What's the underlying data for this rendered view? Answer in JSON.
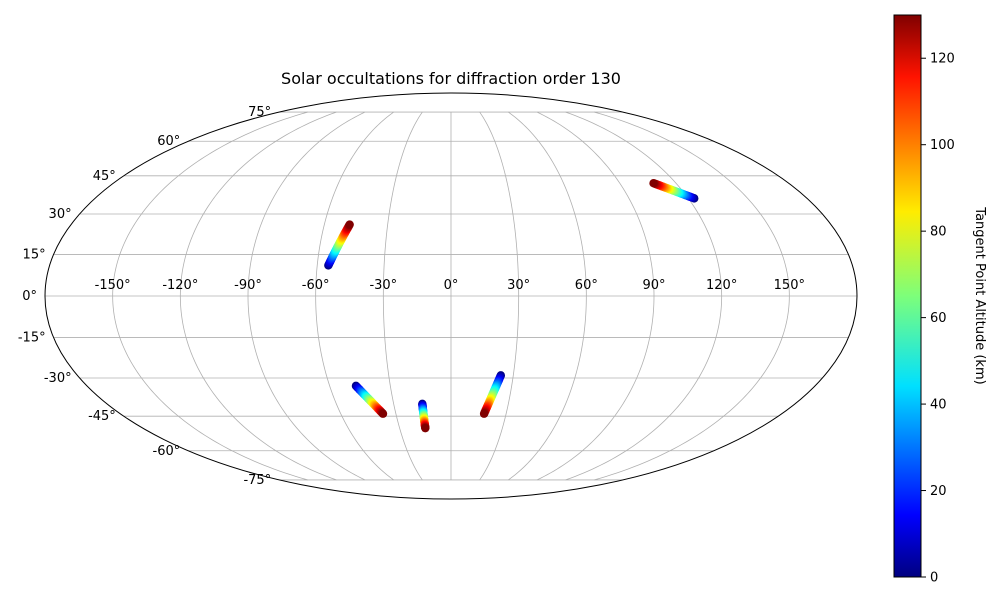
{
  "chart_data": {
    "type": "scatter",
    "projection": "mollweide",
    "title": "Solar occultations for diffraction order 130",
    "grid": true,
    "longitude_ticks": [
      -150,
      -120,
      -90,
      -60,
      -30,
      0,
      30,
      60,
      90,
      120,
      150
    ],
    "longitude_tick_labels": [
      "-150°",
      "-120°",
      "-90°",
      "-60°",
      "-30°",
      "0°",
      "30°",
      "60°",
      "90°",
      "120°",
      "150°"
    ],
    "latitude_ticks": [
      -75,
      -60,
      -45,
      -30,
      -15,
      0,
      15,
      30,
      45,
      60,
      75
    ],
    "latitude_tick_labels": [
      "-75°",
      "-60°",
      "-45°",
      "-30°",
      "-15°",
      "0°",
      "15°",
      "30°",
      "45°",
      "60°",
      "75°"
    ],
    "colorbar": {
      "label": "Tangent Point Altitude (km)",
      "colormap": "jet",
      "range": [
        0,
        130
      ],
      "ticks": [
        0,
        20,
        40,
        60,
        80,
        100,
        120
      ],
      "tick_labels": [
        "0",
        "20",
        "40",
        "60",
        "80",
        "100",
        "120"
      ]
    },
    "tracks": [
      {
        "lon_start": -55,
        "lat_start": 11,
        "lon_end": -48,
        "lat_end": 26,
        "alt_start": 0,
        "alt_end": 130
      },
      {
        "lon_start": 123,
        "lat_start": 36,
        "lon_end": 108,
        "lat_end": 42,
        "alt_start": 0,
        "alt_end": 130
      },
      {
        "lon_start": -47,
        "lat_start": -33,
        "lon_end": -37,
        "lat_end": -44,
        "alt_start": 0,
        "alt_end": 130
      },
      {
        "lon_start": -15,
        "lat_start": -40,
        "lon_end": -15,
        "lat_end": -50,
        "alt_start": 0,
        "alt_end": 130
      },
      {
        "lon_start": 24,
        "lat_start": -29,
        "lon_end": 18,
        "lat_end": -44,
        "alt_start": 0,
        "alt_end": 130
      }
    ]
  }
}
